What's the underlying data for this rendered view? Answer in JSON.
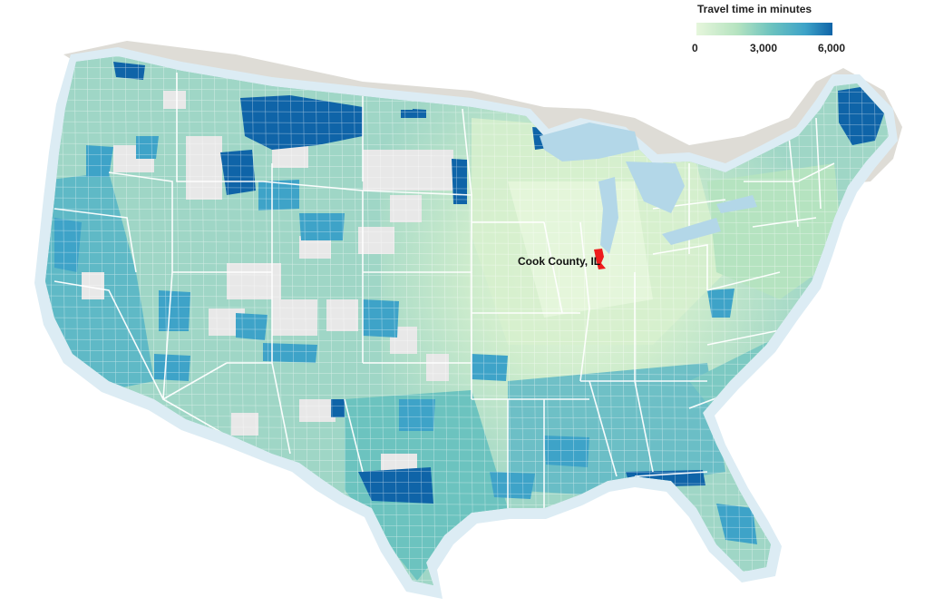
{
  "legend": {
    "title": "Travel time in minutes",
    "ticks": [
      "0",
      "3,000",
      "6,000"
    ],
    "min": 0,
    "max": 6000,
    "colors": [
      "#e6f6dc",
      "#b5e3c0",
      "#6cc3bf",
      "#3ea3c8",
      "#0f64a8"
    ]
  },
  "highlight": {
    "label": "Cook County, IL",
    "color": "#ee1c1c"
  },
  "map": {
    "land_color": "#9fd6c6",
    "no_data_color": "#e8e8e8",
    "water_color": "#b3d7e8",
    "halo_color": "#dcecf4",
    "canada_color": "#dedcd6",
    "state_border_color": "#ffffff"
  }
}
